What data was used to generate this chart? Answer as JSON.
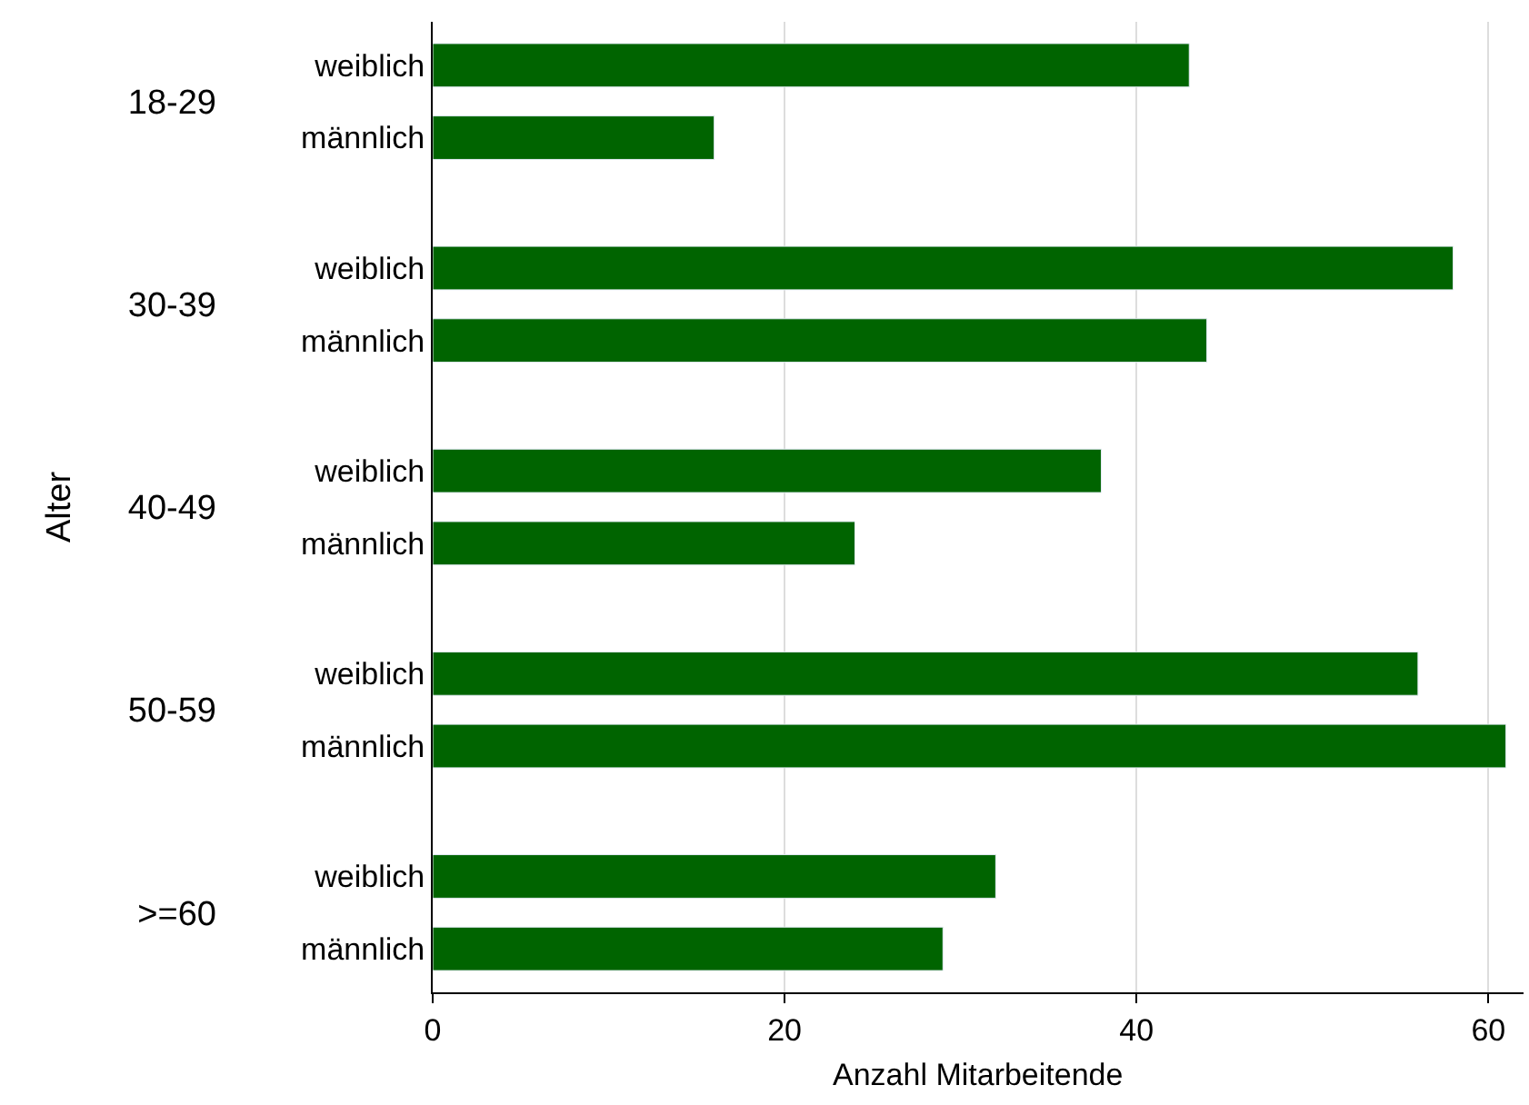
{
  "chart_data": {
    "type": "bar",
    "orientation": "horizontal",
    "xlabel": "Anzahl Mitarbeitende",
    "categories": [
      "weiblich",
      "männlich",
      "weiblich",
      "männlich",
      "weiblich",
      "männlich",
      "weiblich",
      "männlich",
      "weiblich",
      "männlich"
    ],
    "values": [
      43,
      16,
      58,
      44,
      38,
      24,
      56,
      61,
      32,
      29
    ],
    "color": "#006400",
    "annotations": [
      "18-29",
      "30-39",
      "40-49",
      "50-59",
      ">=60",
      "Alter"
    ],
    "xlim": [
      0,
      62
    ],
    "xticks": [
      0,
      20,
      40,
      60
    ],
    "grid": "x"
  }
}
